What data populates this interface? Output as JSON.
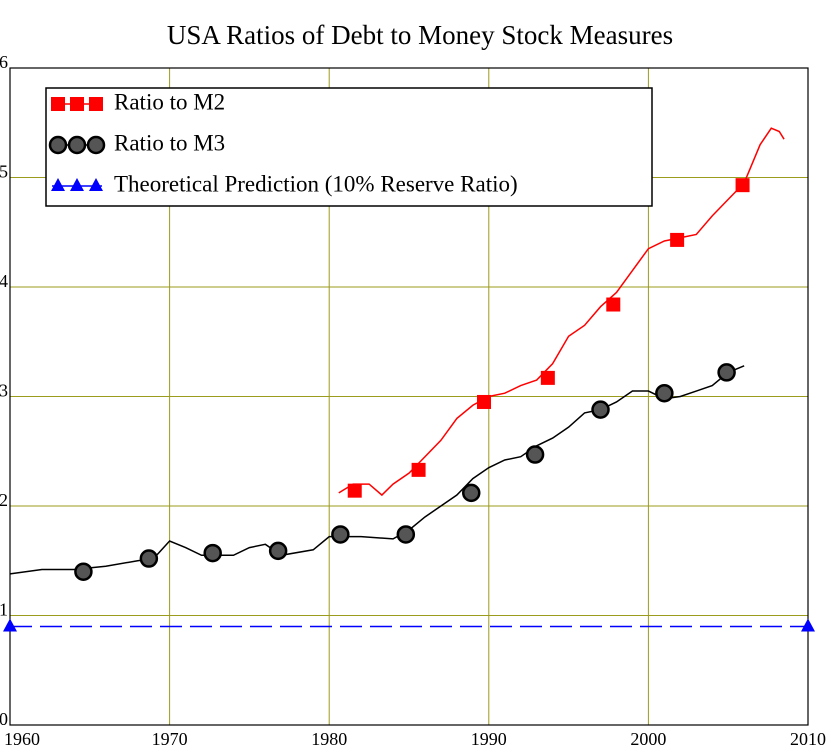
{
  "chart_data": {
    "type": "line",
    "title": "USA Ratios of Debt to Money Stock Measures",
    "xlim": [
      1960,
      2010
    ],
    "xticks": [
      1960,
      1970,
      1980,
      1990,
      2000,
      2010
    ],
    "ylim": [
      0,
      6
    ],
    "yticks": [
      0,
      1,
      2,
      3,
      4,
      5,
      6
    ],
    "grid": true,
    "legend": "upper left",
    "series": [
      {
        "name": "Ratio to M2",
        "color": "#ff0000",
        "marker": "square",
        "dash": false,
        "x": [
          1980.6,
          1981.5,
          1982.5,
          1983.3,
          1984,
          1985,
          1986,
          1987,
          1988,
          1989,
          1990,
          1991,
          1992,
          1993,
          1994,
          1995,
          1996,
          1997,
          1998,
          1999,
          2000,
          2001,
          2002,
          2003,
          2004,
          2005,
          2006,
          2007,
          2007.7,
          2008.2,
          2008.5
        ],
        "values": [
          2.12,
          2.2,
          2.2,
          2.1,
          2.2,
          2.3,
          2.45,
          2.6,
          2.8,
          2.92,
          3.0,
          3.03,
          3.1,
          3.15,
          3.3,
          3.55,
          3.65,
          3.82,
          3.95,
          4.15,
          4.35,
          4.42,
          4.45,
          4.48,
          4.65,
          4.8,
          4.95,
          5.3,
          5.45,
          5.42,
          5.35
        ],
        "markers": {
          "x": [
            1981.6,
            1985.6,
            1989.7,
            1993.7,
            1997.8,
            2001.8,
            2005.9
          ],
          "values": [
            2.14,
            2.33,
            2.95,
            3.17,
            3.84,
            4.43,
            4.93
          ]
        }
      },
      {
        "name": "Ratio to M3",
        "color": "#000000",
        "marker": "circle",
        "dash": false,
        "x": [
          1960,
          1962,
          1964,
          1966,
          1968,
          1969,
          1970,
          1971,
          1972,
          1974,
          1975,
          1976,
          1977,
          1979,
          1980,
          1982,
          1984,
          1985,
          1986,
          1987,
          1988,
          1989,
          1990,
          1991,
          1992,
          1993,
          1994,
          1995,
          1996,
          1997,
          1998,
          1999,
          2000,
          2001,
          2002,
          2003,
          2004,
          2005,
          2006
        ],
        "values": [
          1.38,
          1.42,
          1.42,
          1.45,
          1.5,
          1.52,
          1.68,
          1.62,
          1.55,
          1.55,
          1.62,
          1.65,
          1.55,
          1.6,
          1.72,
          1.72,
          1.7,
          1.78,
          1.9,
          2.0,
          2.1,
          2.25,
          2.35,
          2.42,
          2.45,
          2.55,
          2.62,
          2.72,
          2.85,
          2.88,
          2.95,
          3.05,
          3.05,
          2.98,
          3.0,
          3.05,
          3.1,
          3.22,
          3.28
        ],
        "markers": {
          "x": [
            1964.6,
            1968.7,
            1972.7,
            1976.8,
            1980.7,
            1984.8,
            1988.9,
            1992.9,
            1997.0,
            2001.0,
            2004.9
          ],
          "values": [
            1.4,
            1.52,
            1.57,
            1.59,
            1.74,
            1.74,
            2.12,
            2.47,
            2.88,
            3.03,
            3.22
          ]
        }
      },
      {
        "name": "Theoretical Prediction (10% Reserve Ratio)",
        "color": "#0000ff",
        "marker": "triangle",
        "dash": true,
        "x": [
          1960,
          2010
        ],
        "values": [
          0.9,
          0.9
        ],
        "markers": {
          "x": [
            1960,
            2010
          ],
          "values": [
            0.9,
            0.9
          ]
        }
      }
    ]
  }
}
